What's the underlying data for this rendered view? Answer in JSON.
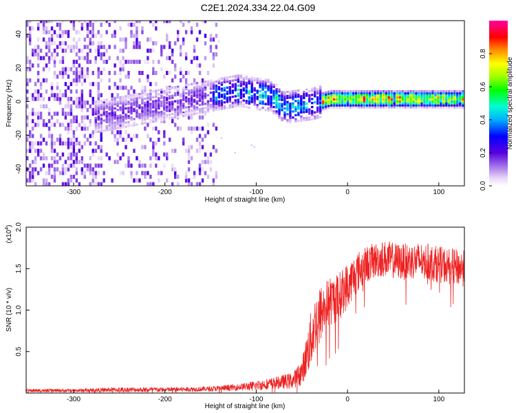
{
  "title": "C2E1.2024.334.22.04.G09",
  "chart_data": [
    {
      "type": "heatmap",
      "xlabel": "Height of straight line (km)",
      "ylabel": "Frequency (Hz)",
      "xlim": [
        -352,
        128
      ],
      "ylim": [
        -50,
        48
      ],
      "xticks": [
        -300,
        -200,
        -100,
        0,
        100
      ],
      "xtick_labels": [
        "-300",
        "-200",
        "-100",
        "0",
        "100"
      ],
      "yticks": [
        -40,
        -20,
        0,
        20,
        40
      ],
      "ytick_labels": [
        "-40",
        "-20",
        "0",
        "20",
        "40"
      ],
      "colorbar": {
        "label": "Normalized spectral amplitude",
        "range": [
          0,
          1
        ],
        "ticks": [
          0.0,
          0.2,
          0.4,
          0.6,
          0.8
        ],
        "tick_labels": [
          "0.0",
          "0.2",
          "0.4",
          "0.6",
          "0.8"
        ]
      },
      "description_values": {
        "signal_track": [
          {
            "x": -150,
            "f": 3
          },
          {
            "x": -120,
            "f": 6
          },
          {
            "x": -100,
            "f": 4
          },
          {
            "x": -85,
            "f": 3
          },
          {
            "x": -70,
            "f": -4
          },
          {
            "x": -55,
            "f": -3
          },
          {
            "x": -40,
            "f": -2
          },
          {
            "x": -20,
            "f": 1
          },
          {
            "x": 0,
            "f": 1
          },
          {
            "x": 50,
            "f": 1
          },
          {
            "x": 128,
            "f": 1
          }
        ],
        "noise_extent_x": [
          -352,
          -142
        ],
        "noise_level": 0.2,
        "peak_amplitude": 0.9
      }
    },
    {
      "type": "line",
      "xlabel": "Height of straight line (km)",
      "ylabel": "SNR (10 * v/v)",
      "yscale_label_base": "(x10",
      "yscale_label_exp": "4",
      "yscale_label_close": ")",
      "xlim": [
        -352,
        128
      ],
      "ylim": [
        0,
        2.0
      ],
      "xticks": [
        -300,
        -200,
        -100,
        0,
        100
      ],
      "xtick_labels": [
        "-300",
        "-200",
        "-100",
        "0",
        "100"
      ],
      "yticks": [
        0.5,
        1.0,
        1.5,
        2.0
      ],
      "ytick_labels": [
        "0.5",
        "1.0",
        "1.5",
        "2.0"
      ],
      "series_color": "#ee2222",
      "envelope": {
        "x": [
          -352,
          -300,
          -250,
          -200,
          -150,
          -120,
          -100,
          -80,
          -60,
          -50,
          -45,
          -40,
          -35,
          -30,
          -20,
          -10,
          0,
          10,
          20,
          30,
          40,
          60,
          80,
          100,
          128
        ],
        "mean": [
          0.03,
          0.03,
          0.04,
          0.04,
          0.05,
          0.07,
          0.09,
          0.12,
          0.15,
          0.25,
          0.45,
          0.65,
          0.85,
          0.95,
          1.1,
          1.15,
          1.3,
          1.45,
          1.55,
          1.6,
          1.62,
          1.58,
          1.6,
          1.55,
          1.5
        ],
        "spread": [
          0.02,
          0.02,
          0.03,
          0.03,
          0.03,
          0.04,
          0.06,
          0.07,
          0.1,
          0.15,
          0.25,
          0.35,
          0.35,
          0.35,
          0.3,
          0.3,
          0.28,
          0.25,
          0.22,
          0.22,
          0.22,
          0.22,
          0.22,
          0.22,
          0.22
        ]
      }
    }
  ]
}
